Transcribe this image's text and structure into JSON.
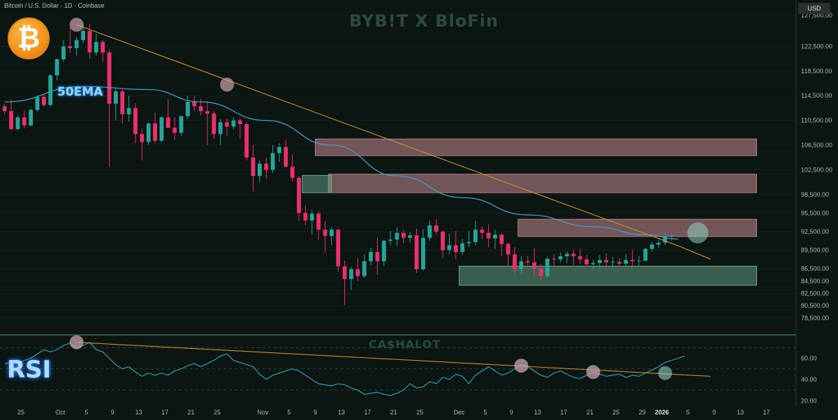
{
  "header": {
    "title": "Bitcoin / U.S. Dollar · 1D · Coinbase",
    "currency": "USD"
  },
  "watermarks": {
    "top": "BYB!T X BloFin",
    "bottom": "CA$HALOT"
  },
  "labels": {
    "ema": "50EMA",
    "rsi": "RSI",
    "logo": "₿"
  },
  "icons": {
    "logo": "bitcoin-logo-icon"
  },
  "colors": {
    "bull": "#26a69a",
    "bear": "#ef2f6c",
    "ema": "#4a9cc2",
    "trend": "#d4902a",
    "rsi": "#3aa8c0",
    "zone_red": "#c98a92",
    "zone_green": "#6aa88a"
  },
  "chart_data": [
    {
      "type": "candlestick",
      "title": "",
      "price_axis": {
        "min": 76000,
        "max": 130000,
        "ticks": [
          127500,
          122500,
          118500,
          114500,
          110500,
          106500,
          102500,
          98500,
          95500,
          92500,
          89500,
          86500,
          84500,
          82500,
          80500,
          78500
        ],
        "tick_labels": [
          "127,500.00",
          "122,500.00",
          "118,500.00",
          "114,500.00",
          "110,500.00",
          "106,500.00",
          "102,500.00",
          "98,500.00",
          "95,500.00",
          "92,500.00",
          "89,500.00",
          "86,500.00",
          "84,500.00",
          "82,500.00",
          "80,500.00",
          "78,500.00"
        ]
      },
      "date_axis": {
        "start": "2025-09-22",
        "end": "2026-01-21",
        "tick_labels": [
          {
            "date": "2025-09-25",
            "label": "25"
          },
          {
            "date": "2025-10-01",
            "label": "Oct"
          },
          {
            "date": "2025-10-05",
            "label": "5"
          },
          {
            "date": "2025-10-09",
            "label": "9"
          },
          {
            "date": "2025-10-13",
            "label": "13"
          },
          {
            "date": "2025-10-17",
            "label": "17"
          },
          {
            "date": "2025-10-21",
            "label": "21"
          },
          {
            "date": "2025-10-25",
            "label": "25"
          },
          {
            "date": "2025-11-01",
            "label": "Nov"
          },
          {
            "date": "2025-11-05",
            "label": "5"
          },
          {
            "date": "2025-11-09",
            "label": "9"
          },
          {
            "date": "2025-11-13",
            "label": "13"
          },
          {
            "date": "2025-11-17",
            "label": "17"
          },
          {
            "date": "2025-11-21",
            "label": "21"
          },
          {
            "date": "2025-11-25",
            "label": "25"
          },
          {
            "date": "2025-12-01",
            "label": "Dec"
          },
          {
            "date": "2025-12-05",
            "label": "5"
          },
          {
            "date": "2025-12-09",
            "label": "9"
          },
          {
            "date": "2025-12-13",
            "label": "13"
          },
          {
            "date": "2025-12-17",
            "label": "17"
          },
          {
            "date": "2025-12-21",
            "label": "21"
          },
          {
            "date": "2025-12-25",
            "label": "25"
          },
          {
            "date": "2025-12-29",
            "label": "29"
          },
          {
            "date": "2026-01-01",
            "label": "2026"
          },
          {
            "date": "2026-01-05",
            "label": "5"
          },
          {
            "date": "2026-01-09",
            "label": "9"
          },
          {
            "date": "2026-01-13",
            "label": "13"
          },
          {
            "date": "2026-01-17",
            "label": "17"
          }
        ]
      },
      "candles_start": "2025-09-22",
      "candles": [
        [
          112800,
          113200,
          111500,
          112000
        ],
        [
          112000,
          113900,
          108900,
          109100
        ],
        [
          109100,
          111300,
          108900,
          111000
        ],
        [
          111000,
          112100,
          109200,
          109700
        ],
        [
          109700,
          112400,
          109500,
          112200
        ],
        [
          112200,
          114600,
          111900,
          114300
        ],
        [
          114300,
          114800,
          112700,
          113000
        ],
        [
          113000,
          118000,
          112800,
          117800
        ],
        [
          117800,
          120500,
          117000,
          120400
        ],
        [
          120400,
          123500,
          120000,
          122500
        ],
        [
          122500,
          125500,
          121500,
          122200
        ],
        [
          122200,
          124000,
          121000,
          123500
        ],
        [
          123500,
          126200,
          123000,
          125000
        ],
        [
          125000,
          126100,
          120500,
          121500
        ],
        [
          121500,
          124500,
          121000,
          123200
        ],
        [
          123200,
          123500,
          120000,
          121500
        ],
        [
          121500,
          122000,
          103000,
          113200
        ],
        [
          113200,
          115700,
          110500,
          115200
        ],
        [
          115200,
          115500,
          110000,
          111500
        ],
        [
          111500,
          114500,
          110300,
          112500
        ],
        [
          112500,
          113300,
          106800,
          108300
        ],
        [
          108300,
          109200,
          104000,
          107000
        ],
        [
          107000,
          110200,
          106500,
          110000
        ],
        [
          110000,
          111800,
          106800,
          107200
        ],
        [
          107200,
          111200,
          107000,
          111000
        ],
        [
          111000,
          114000,
          109500,
          109300
        ],
        [
          109300,
          111000,
          107300,
          108500
        ],
        [
          108500,
          111200,
          108000,
          111200
        ],
        [
          111200,
          114500,
          110800,
          113500
        ],
        [
          113500,
          114500,
          112000,
          112800
        ],
        [
          112800,
          114000,
          111300,
          112000
        ],
        [
          112000,
          113600,
          106500,
          111600
        ],
        [
          111600,
          112000,
          107500,
          108300
        ],
        [
          108300,
          110700,
          106500,
          110200
        ],
        [
          110200,
          110800,
          108000,
          109500
        ],
        [
          109500,
          111000,
          109000,
          110500
        ],
        [
          110500,
          110800,
          107500,
          109900
        ],
        [
          109900,
          110200,
          104000,
          104500
        ],
        [
          104500,
          106500,
          99000,
          101500
        ],
        [
          101500,
          104000,
          100500,
          103500
        ],
        [
          103500,
          104500,
          101000,
          102500
        ],
        [
          102500,
          106500,
          102000,
          105200
        ],
        [
          105200,
          106800,
          103800,
          106200
        ],
        [
          106200,
          107400,
          102800,
          103000
        ],
        [
          103000,
          105000,
          100600,
          101200
        ],
        [
          101200,
          101500,
          94200,
          95500
        ],
        [
          95500,
          96700,
          93500,
          94300
        ],
        [
          94300,
          96000,
          92000,
          95400
        ],
        [
          95400,
          95800,
          91200,
          92800
        ],
        [
          92800,
          94200,
          89000,
          91800
        ],
        [
          91800,
          93200,
          90300,
          92800
        ],
        [
          92800,
          93000,
          86000,
          86900
        ],
        [
          86900,
          87800,
          80600,
          84800
        ],
        [
          84800,
          86800,
          83000,
          86400
        ],
        [
          86400,
          88200,
          84500,
          85300
        ],
        [
          85300,
          88800,
          85000,
          87700
        ],
        [
          87700,
          89900,
          87000,
          89200
        ],
        [
          89200,
          91500,
          85500,
          87700
        ],
        [
          87700,
          91200,
          86900,
          91000
        ],
        [
          91000,
          92600,
          90300,
          91200
        ],
        [
          91200,
          93200,
          90200,
          92300
        ],
        [
          92300,
          92800,
          90600,
          91500
        ],
        [
          91500,
          92400,
          90700,
          91900
        ],
        [
          91900,
          93000,
          85800,
          86400
        ],
        [
          86400,
          92900,
          86200,
          91500
        ],
        [
          91500,
          94300,
          91000,
          93500
        ],
        [
          93500,
          94500,
          92000,
          92500
        ],
        [
          92500,
          92700,
          88200,
          89500
        ],
        [
          89500,
          92200,
          88800,
          90300
        ],
        [
          90300,
          92600,
          88000,
          89200
        ],
        [
          89200,
          91300,
          88700,
          90600
        ],
        [
          90600,
          92600,
          90000,
          90800
        ],
        [
          90800,
          94300,
          90300,
          92800
        ],
        [
          92800,
          93300,
          91300,
          92300
        ],
        [
          92300,
          93700,
          90000,
          91400
        ],
        [
          91400,
          92800,
          89700,
          92000
        ],
        [
          92000,
          92200,
          88500,
          90500
        ],
        [
          90500,
          90700,
          87000,
          88800
        ],
        [
          88800,
          90000,
          85500,
          86400
        ],
        [
          86400,
          88500,
          85500,
          87700
        ],
        [
          87700,
          88600,
          86600,
          87500
        ],
        [
          87500,
          89900,
          85200,
          86500
        ],
        [
          86500,
          87300,
          84700,
          85300
        ],
        [
          85300,
          88400,
          85000,
          88100
        ],
        [
          88100,
          88800,
          87100,
          88000
        ],
        [
          88000,
          89100,
          87500,
          88500
        ],
        [
          88500,
          89300,
          87400,
          88900
        ],
        [
          88900,
          89500,
          87100,
          88500
        ],
        [
          88500,
          89700,
          87300,
          88000
        ],
        [
          88000,
          88700,
          86800,
          87200
        ],
        [
          87200,
          87900,
          86500,
          87400
        ],
        [
          87400,
          88700,
          86700,
          87900
        ],
        [
          87900,
          89000,
          87000,
          87500
        ],
        [
          87500,
          88400,
          86900,
          87600
        ],
        [
          87600,
          88200,
          87000,
          87300
        ],
        [
          87300,
          88800,
          86900,
          87900
        ],
        [
          87900,
          89600,
          86600,
          87700
        ],
        [
          87700,
          88500,
          86900,
          87800
        ],
        [
          87800,
          89900,
          87700,
          89700
        ],
        [
          89700,
          90800,
          89300,
          90400
        ],
        [
          90400,
          91200,
          89800,
          90700
        ],
        [
          90700,
          92400,
          90300,
          91800
        ],
        [
          91800,
          92300,
          91000,
          91900
        ]
      ],
      "ema50": [
        [
          0,
          113500
        ],
        [
          12,
          116000
        ],
        [
          22,
          115500
        ],
        [
          30,
          113500
        ],
        [
          40,
          110500
        ],
        [
          50,
          106500
        ],
        [
          60,
          101500
        ],
        [
          70,
          98000
        ],
        [
          80,
          95200
        ],
        [
          90,
          93300
        ],
        [
          98,
          92000
        ],
        [
          103,
          91300
        ]
      ],
      "trendline": [
        [
          11,
          126000
        ],
        [
          103,
          90200
        ],
        [
          108,
          88000
        ]
      ],
      "zones": [
        {
          "kind": "resistance",
          "from": 48,
          "to": 115,
          "low": 104800,
          "high": 107500
        },
        {
          "kind": "resistance",
          "from": 50,
          "to": 115,
          "low": 98800,
          "high": 101800
        },
        {
          "kind": "resistance",
          "from": 79,
          "to": 115,
          "low": 91700,
          "high": 94500
        },
        {
          "kind": "support",
          "from": 46,
          "to": 50,
          "low": 98800,
          "high": 101600
        },
        {
          "kind": "support",
          "from": 70,
          "to": 115,
          "low": 83800,
          "high": 86900
        }
      ],
      "markers": [
        {
          "i": 11,
          "value": 126000,
          "kind": "peak"
        },
        {
          "i": 34,
          "value": 116300,
          "kind": "peak"
        },
        {
          "i": 106,
          "value": 92300,
          "kind": "breakout"
        }
      ]
    },
    {
      "type": "line",
      "title": "",
      "y_axis": {
        "min": 15,
        "max": 80,
        "ticks": [
          60,
          40,
          20
        ],
        "tick_labels": [
          "60.00",
          "40.00",
          "20.00"
        ]
      },
      "guide_levels": [
        70,
        50,
        30
      ],
      "rsi": [
        55,
        56,
        55,
        58,
        60,
        64,
        68,
        66,
        68,
        72,
        74,
        70,
        72,
        75,
        68,
        66,
        60,
        54,
        50,
        52,
        47,
        43,
        46,
        44,
        46,
        44,
        48,
        50,
        53,
        55,
        52,
        55,
        58,
        62,
        64,
        58,
        56,
        54,
        52,
        45,
        40,
        44,
        46,
        48,
        50,
        48,
        44,
        40,
        36,
        35,
        34,
        36,
        35,
        32,
        30,
        26,
        27,
        28,
        26,
        25,
        27,
        30,
        36,
        32,
        33,
        38,
        36,
        42,
        40,
        45,
        43,
        36,
        44,
        48,
        52,
        48,
        44,
        46,
        50,
        54,
        52,
        48,
        44,
        42,
        46,
        48,
        45,
        42,
        41,
        44,
        47,
        45,
        43,
        44,
        45,
        42,
        44,
        43,
        46,
        49,
        52,
        56,
        58,
        60,
        62
      ],
      "trendline": [
        [
          11,
          75
        ],
        [
          108,
          43
        ]
      ],
      "markers": [
        {
          "i": 11,
          "value": 75,
          "kind": "peak"
        },
        {
          "i": 79,
          "value": 53,
          "kind": "peak"
        },
        {
          "i": 90,
          "value": 47,
          "kind": "peak"
        },
        {
          "i": 101,
          "value": 46,
          "kind": "breakout"
        }
      ]
    }
  ]
}
